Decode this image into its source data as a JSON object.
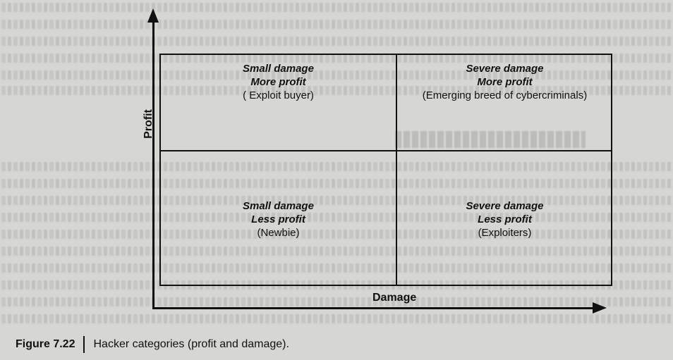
{
  "diagram": {
    "y_axis_label": "Profit",
    "x_axis_label": "Damage",
    "quadrants": {
      "top_left": {
        "line1": "Small damage",
        "line2": "More profit",
        "line3": "( Exploit buyer)"
      },
      "top_right": {
        "line1": "Severe damage",
        "line2": "More profit",
        "line3": "(Emerging breed of cybercriminals)"
      },
      "bottom_left": {
        "line1": "Small damage",
        "line2": "Less profit",
        "line3": "(Newbie)"
      },
      "bottom_right": {
        "line1": "Severe damage",
        "line2": "Less profit",
        "line3": "(Exploiters)"
      }
    }
  },
  "caption": {
    "number": "Figure 7.22",
    "text": "Hacker categories (profit and damage)."
  }
}
